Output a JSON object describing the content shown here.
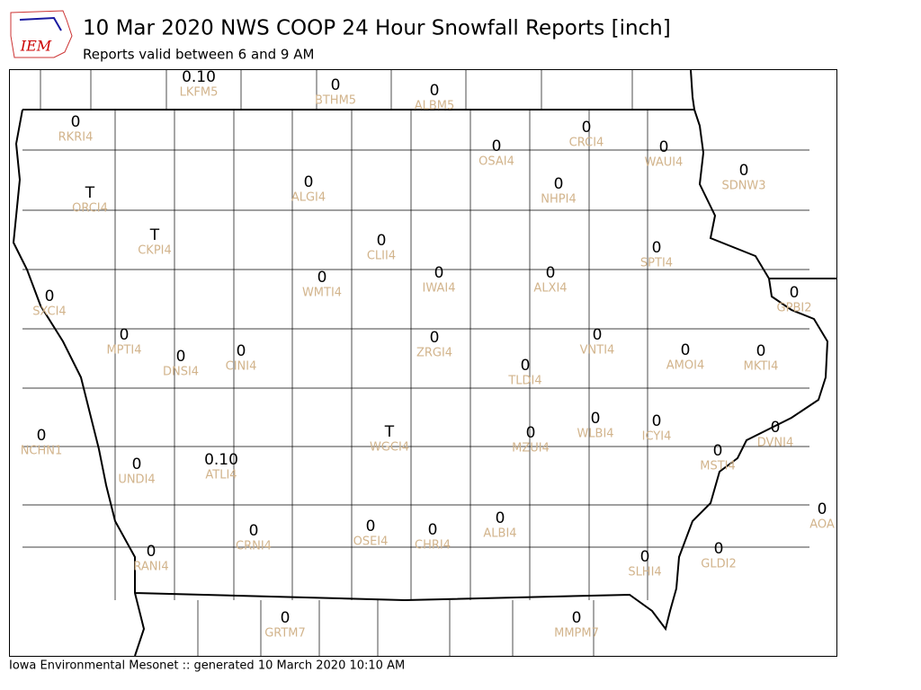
{
  "header": {
    "logo": "IEM",
    "title": "10 Mar 2020 NWS COOP 24 Hour Snowfall Reports [inch]",
    "subtitle": "Reports valid between 6 and 9 AM"
  },
  "stations": [
    {
      "value": "0.10",
      "id": "LKFM5"
    },
    {
      "value": "0",
      "id": "BTHM5"
    },
    {
      "value": "0",
      "id": "ALBM5"
    },
    {
      "value": "0",
      "id": "RKRI4"
    },
    {
      "value": "0",
      "id": "CRCI4"
    },
    {
      "value": "0",
      "id": "OSAI4"
    },
    {
      "value": "0",
      "id": "WAUI4"
    },
    {
      "value": "0",
      "id": "SDNW3"
    },
    {
      "value": "0",
      "id": "ALGI4"
    },
    {
      "value": "0",
      "id": "NHPI4"
    },
    {
      "value": "T",
      "id": "ORCI4"
    },
    {
      "value": "T",
      "id": "CKPI4"
    },
    {
      "value": "0",
      "id": "CLII4"
    },
    {
      "value": "0",
      "id": "SPTI4"
    },
    {
      "value": "0",
      "id": "IWAI4"
    },
    {
      "value": "0",
      "id": "ALXI4"
    },
    {
      "value": "0",
      "id": "WMTI4"
    },
    {
      "value": "0",
      "id": "GPBI2"
    },
    {
      "value": "0",
      "id": "SXCI4"
    },
    {
      "value": "0",
      "id": "VNTI4"
    },
    {
      "value": "0",
      "id": "MPTI4"
    },
    {
      "value": "0",
      "id": "ZRGI4"
    },
    {
      "value": "0",
      "id": "CINI4"
    },
    {
      "value": "0",
      "id": "AMOI4"
    },
    {
      "value": "0",
      "id": "DNSI4"
    },
    {
      "value": "0",
      "id": "MKTI4"
    },
    {
      "value": "0",
      "id": "TLDI4"
    },
    {
      "value": "0",
      "id": "WLBI4"
    },
    {
      "value": "0",
      "id": "ICYI4"
    },
    {
      "value": "T",
      "id": "WGCI4"
    },
    {
      "value": "0",
      "id": "DVNI4"
    },
    {
      "value": "0",
      "id": "NCHN1"
    },
    {
      "value": "0",
      "id": "MZUI4"
    },
    {
      "value": "0",
      "id": "MSTI4"
    },
    {
      "value": "0.10",
      "id": "ATLI4"
    },
    {
      "value": "0",
      "id": "UNDI4"
    },
    {
      "value": "0",
      "id": "AOA"
    },
    {
      "value": "0",
      "id": "ALBI4"
    },
    {
      "value": "0",
      "id": "OSEI4"
    },
    {
      "value": "0",
      "id": "CHRI4"
    },
    {
      "value": "0",
      "id": "CRNI4"
    },
    {
      "value": "0",
      "id": "SLHI4"
    },
    {
      "value": "0",
      "id": "GLDI2"
    },
    {
      "value": "0",
      "id": "RANI4"
    },
    {
      "value": "0",
      "id": "GRTM7"
    },
    {
      "value": "0",
      "id": "MMPM7"
    }
  ],
  "footer": "Iowa Environmental Mesonet :: generated 10 March 2020 10:10 AM"
}
